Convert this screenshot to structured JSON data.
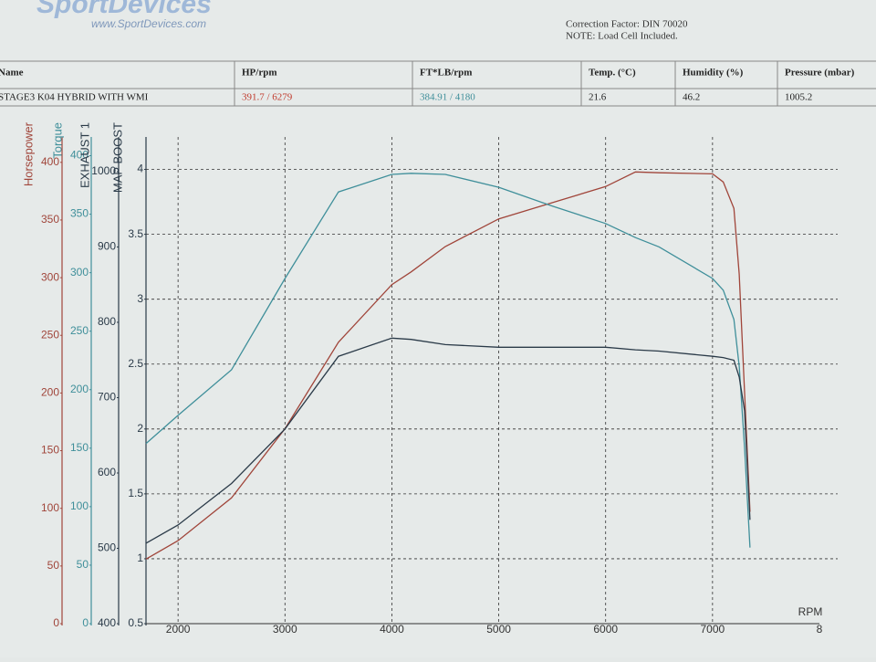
{
  "header": {
    "logo": "SportDevices",
    "website": "www.SportDevices.com",
    "correction": "Correction Factor: DIN 70020",
    "note": "NOTE: Load Cell Included."
  },
  "table": {
    "columns": [
      "Name",
      "HP/rpm",
      "FT*LB/rpm",
      "Temp. (°C)",
      "Humidity (%)",
      "Pressure (mbar)"
    ],
    "row": [
      "STAGE3 K04 HYBRID WITH WMI",
      "391.7 / 6279",
      "384.91 / 4180",
      "21.6",
      "46.2",
      "1005.2"
    ]
  },
  "chart_data": {
    "type": "line",
    "xlabel": "RPM",
    "x": [
      1700,
      2000,
      2500,
      3000,
      3500,
      4000,
      4180,
      4500,
      5000,
      5500,
      6000,
      6279,
      6500,
      7000,
      7100,
      7200,
      7250,
      7300,
      7350
    ],
    "xlim": [
      1700,
      8000
    ],
    "xticks": [
      2000,
      3000,
      4000,
      5000,
      6000,
      7000,
      {
        "value": 8000,
        "label": "8"
      }
    ],
    "axes": [
      {
        "label": "Horsepower",
        "color": "#a0453a",
        "ylim": [
          0,
          422
        ],
        "yticks": [
          0,
          50,
          100,
          150,
          200,
          250,
          300,
          350,
          400
        ]
      },
      {
        "label": "Torque",
        "color": "#3f8f9a",
        "ylim": [
          0,
          416
        ],
        "yticks": [
          0,
          50,
          100,
          150,
          200,
          250,
          300,
          350,
          400
        ]
      },
      {
        "label": "EXHAUST 1",
        "color": "#2a3a48",
        "ylim": [
          400,
          1046
        ],
        "yticks": [
          400,
          500,
          600,
          700,
          800,
          900,
          1000
        ]
      },
      {
        "label": "MAP BOOST",
        "color": "#2a3a48",
        "ylim": [
          0.5,
          4.25
        ],
        "yticks": [
          0.5,
          1.0,
          1.5,
          2.0,
          2.5,
          3.0,
          3.5,
          4.0
        ]
      }
    ],
    "grid": true,
    "series": [
      {
        "name": "Horsepower",
        "axis": 0,
        "color": "#a0453a",
        "values": [
          56,
          72,
          109,
          169,
          244,
          294,
          305,
          327,
          351,
          365,
          379,
          391.7,
          391,
          390,
          383,
          360,
          303,
          200,
          97
        ]
      },
      {
        "name": "Torque",
        "axis": 1,
        "color": "#3f8f9a",
        "values": [
          154,
          178,
          217,
          295,
          369,
          384,
          384.91,
          384,
          373,
          357,
          342,
          330,
          322,
          295,
          285,
          260,
          220,
          150,
          65
        ]
      },
      {
        "name": "MAP BOOST",
        "axis": 3,
        "color": "#2a3a48",
        "values": [
          1.12,
          1.26,
          1.58,
          2.0,
          2.56,
          2.7,
          2.69,
          2.65,
          2.63,
          2.63,
          2.63,
          2.61,
          2.6,
          2.56,
          2.55,
          2.53,
          2.4,
          2.14,
          1.3
        ]
      }
    ]
  }
}
